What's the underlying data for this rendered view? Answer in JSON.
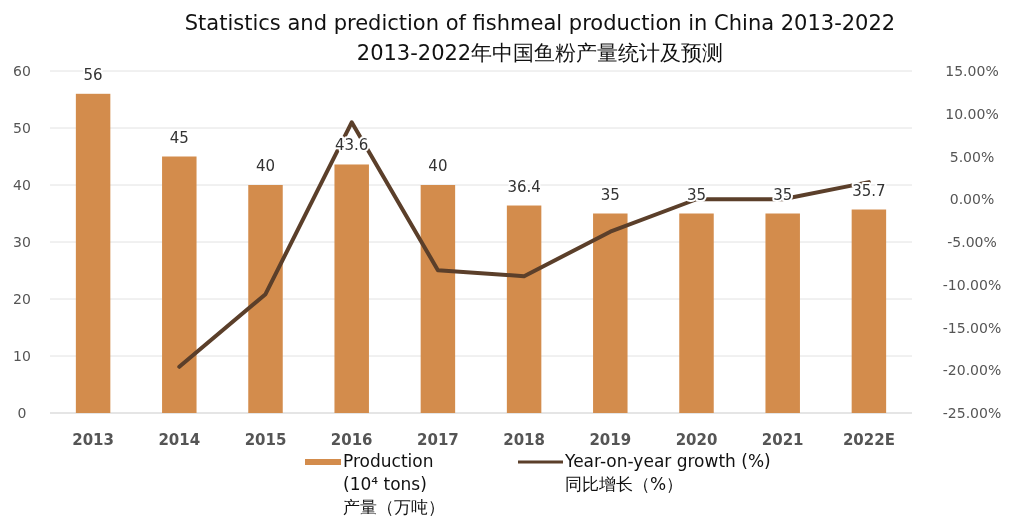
{
  "chart_data": {
    "type": "bar",
    "title": "Statistics and prediction of fishmeal production in China 2013-2022",
    "subtitle": "2013-2022年中国鱼粉产量统计及预测",
    "categories": [
      "2013",
      "2014",
      "2015",
      "2016",
      "2017",
      "2018",
      "2019",
      "2020",
      "2021",
      "2022E"
    ],
    "series": [
      {
        "name": "Production\n(10⁴ tons)\n产量（万吨）",
        "color": "#d38c4c",
        "values": [
          56,
          45,
          40,
          43.6,
          40,
          36.4,
          35,
          35,
          35,
          35.7
        ],
        "value_labels": [
          "56",
          "45",
          "40",
          "43.6",
          "40",
          "36.4",
          "35",
          "35",
          "35",
          "35.7"
        ]
      },
      {
        "name": "Year-on-year growth (%)\n同比增长（%）",
        "type": "line",
        "axis": "y2",
        "color": "#5b3f2a",
        "values": [
          null,
          -19.6,
          -11.1,
          9.0,
          -8.3,
          -9.0,
          -3.8,
          0.0,
          0.0,
          2.0
        ]
      }
    ],
    "ylim": [
      0,
      60
    ],
    "yticks": [
      0,
      10,
      20,
      30,
      40,
      50,
      60
    ],
    "y2lim": [
      -25,
      15
    ],
    "y2ticks": [
      {
        "value": -25,
        "label": "-25.00%"
      },
      {
        "value": -20,
        "label": "-20.00%"
      },
      {
        "value": -15,
        "label": "-15.00%"
      },
      {
        "value": -10,
        "label": "-10.00%"
      },
      {
        "value": -5,
        "label": "-5.00%"
      },
      {
        "value": 0,
        "label": "0.00%"
      },
      {
        "value": 5,
        "label": "5.00%"
      },
      {
        "value": 10,
        "label": "10.00%"
      },
      {
        "value": 15,
        "label": "15.00%"
      }
    ],
    "grid": "y",
    "legend": "bottom",
    "marker": "none",
    "line_style": "solid"
  }
}
